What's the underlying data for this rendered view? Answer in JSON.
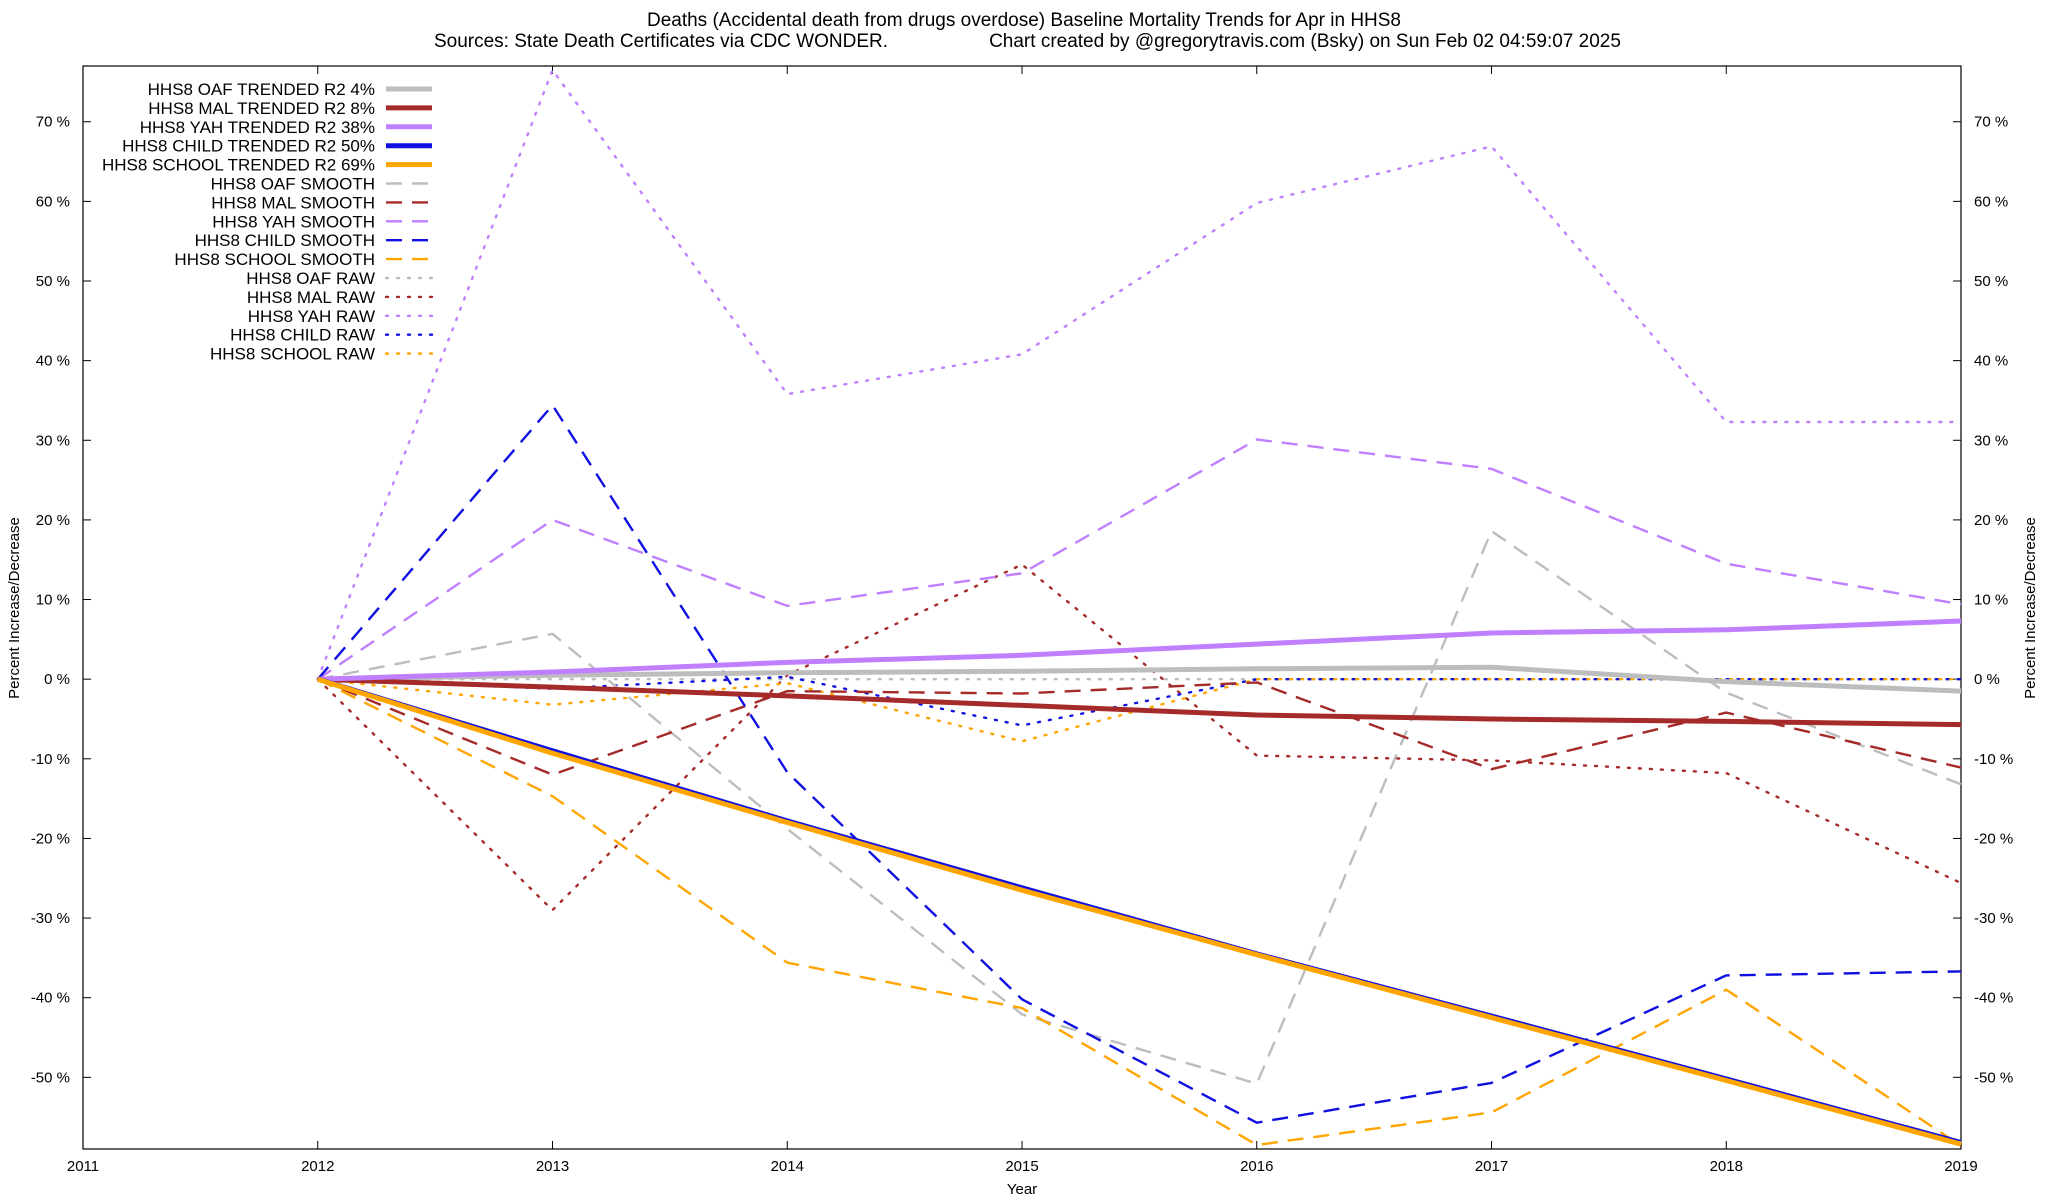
{
  "chart_data": {
    "type": "line",
    "title": "Deaths (Accidental death from drugs overdose)  Baseline Mortality Trends for Apr in HHS8",
    "subtitle_left": "Sources: State Death Certificates via CDC WONDER.",
    "subtitle_right": "Chart created by @gregorytravis.com (Bsky) on Sun Feb 02 04:59:07 2025",
    "xlabel": "Year",
    "ylabel": "Percent Increase/Decrease",
    "y2label": "Percent Increase/Decrease",
    "xlim": [
      2011,
      2019
    ],
    "ylim": [
      -59,
      77
    ],
    "x_ticks": [
      "2011",
      "2012",
      "2013",
      "2014",
      "2015",
      "2016",
      "2017",
      "2018",
      "2019"
    ],
    "x_tick_values": [
      2011,
      2012,
      2013,
      2014,
      2015,
      2016,
      2017,
      2018,
      2019
    ],
    "y_ticks": [
      "70 %",
      "60 %",
      "50 %",
      "40 %",
      "30 %",
      "20 %",
      "10 %",
      "0 %",
      "-10 %",
      "-20 %",
      "-30 %",
      "-40 %",
      "-50 %"
    ],
    "y_tick_values": [
      70,
      60,
      50,
      40,
      30,
      20,
      10,
      0,
      -10,
      -20,
      -30,
      -40,
      -50
    ],
    "legend_position": "top-left",
    "x": [
      2012,
      2013,
      2014,
      2015,
      2016,
      2017,
      2018,
      2019
    ],
    "series": [
      {
        "name": "HHS8 OAF TRENDED R2",
        "r2": "4%",
        "style": "solid",
        "color": "#bdbdbd",
        "values": [
          0,
          0.5,
          0.8,
          1.0,
          1.3,
          1.5,
          -0.3,
          -1.5
        ]
      },
      {
        "name": "HHS8 MAL TRENDED R2",
        "r2": "8%",
        "style": "solid",
        "color": "#a52a2a",
        "values": [
          0,
          -1.0,
          -2.1,
          -3.3,
          -4.5,
          -5.0,
          -5.3,
          -5.7
        ]
      },
      {
        "name": "HHS8 YAH TRENDED R2",
        "r2": "38%",
        "style": "solid",
        "color": "#bf7fff",
        "values": [
          0,
          0.9,
          2.1,
          3.0,
          4.4,
          5.8,
          6.2,
          7.3
        ]
      },
      {
        "name": "HHS8 CHILD TRENDED R2",
        "r2": "50%",
        "style": "solid",
        "color": "#1010e0",
        "values": [
          0,
          -9.0,
          -17.8,
          -26.2,
          -34.5,
          -42.3,
          -50.2,
          -58.2
        ]
      },
      {
        "name": "HHS8 SCHOOL TRENDED R2",
        "r2": "69%",
        "style": "solid",
        "color": "#ffa500",
        "values": [
          0,
          -9.3,
          -18.0,
          -26.5,
          -34.6,
          -42.5,
          -50.4,
          -58.4
        ]
      },
      {
        "name": "HHS8 OAF SMOOTH",
        "style": "dashed",
        "color": "#bdbdbd",
        "values": [
          0,
          5.7,
          -18.8,
          -42.1,
          -50.8,
          18.6,
          -1.7,
          -13.2
        ]
      },
      {
        "name": "HHS8 MAL SMOOTH",
        "style": "dashed",
        "color": "#a52a2a",
        "values": [
          0,
          -12.0,
          -1.5,
          -1.8,
          -0.4,
          -11.3,
          -4.2,
          -11.1
        ]
      },
      {
        "name": "HHS8 YAH SMOOTH",
        "style": "dashed",
        "color": "#bf7fff",
        "values": [
          0,
          20.0,
          9.2,
          13.3,
          30.1,
          26.4,
          14.5,
          9.4
        ]
      },
      {
        "name": "HHS8 CHILD SMOOTH",
        "style": "dashed",
        "color": "#1010e0",
        "values": [
          0,
          34.4,
          -11.7,
          -40.2,
          -55.7,
          -50.7,
          -37.2,
          -36.7
        ]
      },
      {
        "name": "HHS8 SCHOOL SMOOTH",
        "style": "dashed",
        "color": "#ffa500",
        "values": [
          0,
          -14.7,
          -35.6,
          -41.3,
          -58.5,
          -54.4,
          -39.0,
          -58.6
        ]
      },
      {
        "name": "HHS8 OAF RAW",
        "style": "dotted",
        "color": "#bdbdbd",
        "values": [
          0,
          0,
          0,
          0,
          0,
          0,
          0,
          0
        ]
      },
      {
        "name": "HHS8 MAL RAW",
        "style": "dotted",
        "color": "#a52a2a",
        "values": [
          0,
          -29.0,
          0.5,
          14.4,
          -9.6,
          -10.2,
          -11.8,
          -25.6
        ]
      },
      {
        "name": "HHS8 YAH RAW",
        "style": "dotted",
        "color": "#bf7fff",
        "values": [
          0,
          76.5,
          35.8,
          40.8,
          59.8,
          66.9,
          32.3,
          32.3
        ]
      },
      {
        "name": "HHS8 CHILD RAW",
        "style": "dotted",
        "color": "#1010e0",
        "values": [
          0,
          -1.2,
          0.3,
          -5.8,
          0,
          0,
          0,
          0
        ]
      },
      {
        "name": "HHS8 SCHOOL RAW",
        "style": "dotted",
        "color": "#ffa500",
        "values": [
          0,
          -3.2,
          -0.5,
          -7.8,
          0,
          0,
          0,
          0
        ]
      }
    ]
  }
}
